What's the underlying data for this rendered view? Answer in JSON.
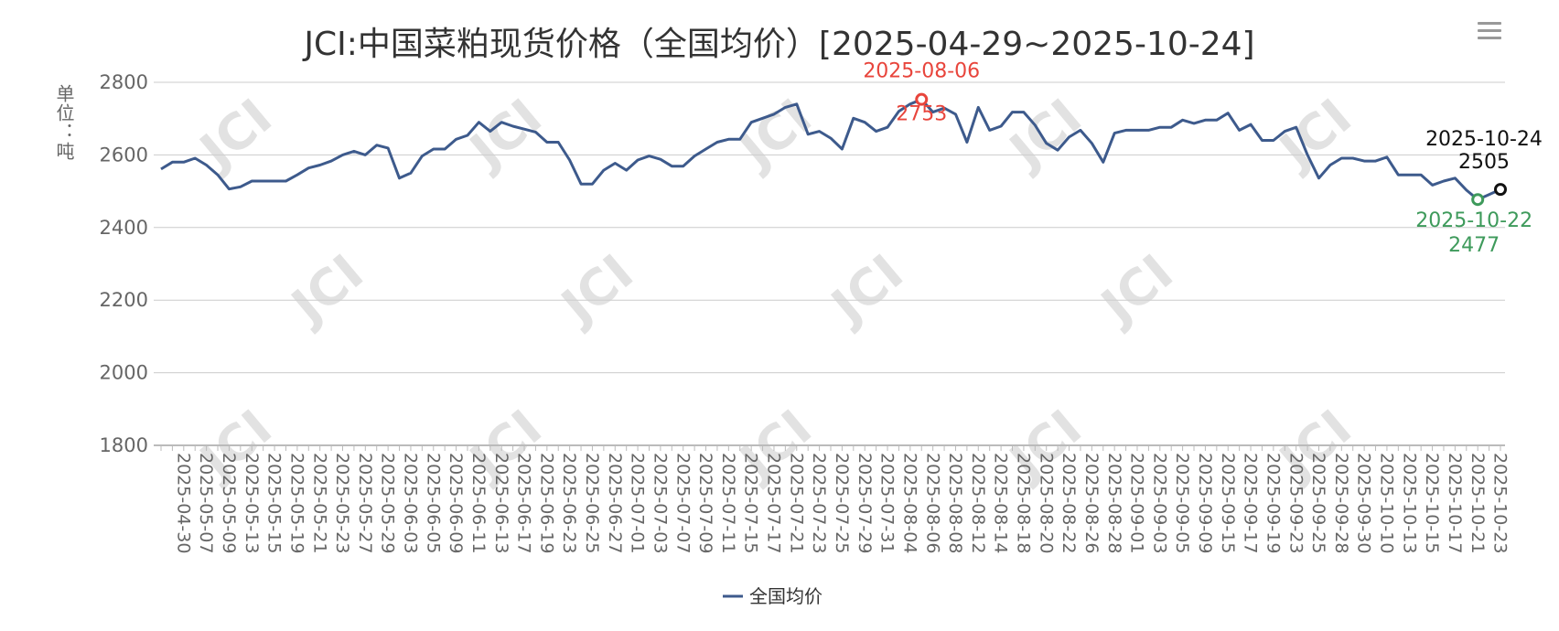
{
  "chart_data": {
    "type": "line",
    "title": "JCI:中国菜粕现货价格（全国均价）[2025-04-29~2025-10-24]",
    "ylabel": "单位：吨",
    "xlabel": "",
    "ylim": [
      1800,
      2800
    ],
    "yticks": [
      1800,
      2000,
      2200,
      2400,
      2600,
      2800
    ],
    "grid": true,
    "legend_position": "bottom-center",
    "x_labels": [
      "2025-04-30",
      "2025-05-07",
      "2025-05-09",
      "2025-05-13",
      "2025-05-15",
      "2025-05-19",
      "2025-05-21",
      "2025-05-23",
      "2025-05-27",
      "2025-05-29",
      "2025-06-03",
      "2025-06-05",
      "2025-06-09",
      "2025-06-11",
      "2025-06-13",
      "2025-06-17",
      "2025-06-19",
      "2025-06-23",
      "2025-06-25",
      "2025-06-27",
      "2025-07-01",
      "2025-07-03",
      "2025-07-07",
      "2025-07-09",
      "2025-07-11",
      "2025-07-15",
      "2025-07-17",
      "2025-07-21",
      "2025-07-23",
      "2025-07-25",
      "2025-07-29",
      "2025-07-31",
      "2025-08-04",
      "2025-08-06",
      "2025-08-08",
      "2025-08-12",
      "2025-08-14",
      "2025-08-18",
      "2025-08-20",
      "2025-08-22",
      "2025-08-26",
      "2025-08-28",
      "2025-09-01",
      "2025-09-03",
      "2025-09-05",
      "2025-09-09",
      "2025-09-15",
      "2025-09-17",
      "2025-09-19",
      "2025-09-23",
      "2025-09-25",
      "2025-09-28",
      "2025-09-30",
      "2025-10-10",
      "2025-10-13",
      "2025-10-15",
      "2025-10-17",
      "2025-10-21",
      "2025-10-23"
    ],
    "series": [
      {
        "name": "全国均价",
        "color": "#3d5a8c",
        "values": [
          2561,
          2580,
          2580,
          2591,
          2572,
          2545,
          2506,
          2512,
          2528,
          2528,
          2528,
          2528,
          2545,
          2564,
          2572,
          2583,
          2600,
          2610,
          2600,
          2627,
          2619,
          2536,
          2550,
          2597,
          2616,
          2616,
          2643,
          2654,
          2690,
          2665,
          2690,
          2679,
          2671,
          2663,
          2635,
          2635,
          2586,
          2520,
          2520,
          2558,
          2577,
          2558,
          2586,
          2597,
          2588,
          2569,
          2569,
          2597,
          2616,
          2635,
          2643,
          2643,
          2690,
          2701,
          2712,
          2731,
          2740,
          2657,
          2665,
          2646,
          2616,
          2701,
          2690,
          2665,
          2676,
          2720,
          2740,
          2753,
          2718,
          2729,
          2712,
          2635,
          2731,
          2668,
          2679,
          2718,
          2718,
          2682,
          2632,
          2613,
          2649,
          2668,
          2632,
          2580,
          2660,
          2668,
          2668,
          2668,
          2676,
          2676,
          2696,
          2687,
          2696,
          2696,
          2715,
          2668,
          2684,
          2640,
          2640,
          2665,
          2676,
          2600,
          2536,
          2572,
          2591,
          2591,
          2583,
          2583,
          2594,
          2545,
          2545,
          2545,
          2517,
          2528,
          2536,
          2503,
          2477,
          2491,
          2505
        ]
      }
    ],
    "annotations": [
      {
        "label": "2025-08-06",
        "value": "2753",
        "index": 67,
        "color": "#e8453c",
        "placement": "above"
      },
      {
        "label": "2025-10-24",
        "value": "2505",
        "index": 118,
        "color": "#111111",
        "placement": "above"
      },
      {
        "label": "2025-10-22",
        "value": "2477",
        "index": 116,
        "color": "#3e9a5b",
        "placement": "below"
      }
    ]
  },
  "watermark": "JCI",
  "toolbar": {
    "menu_icon": "hamburger-menu-icon"
  }
}
